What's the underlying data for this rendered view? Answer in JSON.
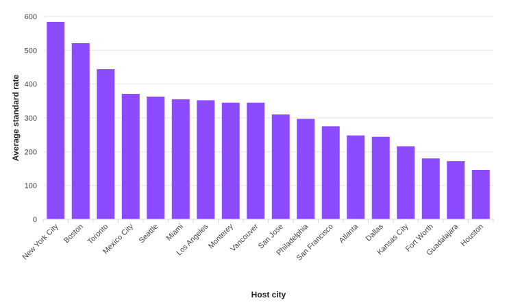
{
  "chart_data": {
    "type": "bar",
    "title": "",
    "xlabel": "Host city",
    "ylabel": "Average standard rate",
    "ylim": [
      0,
      600
    ],
    "yticks": [
      0,
      100,
      200,
      300,
      400,
      500,
      600
    ],
    "grid": true,
    "legend": null,
    "bar_color": "#8c4bff",
    "categories": [
      "New York City",
      "Boston",
      "Toronto",
      "Mexico City",
      "Seattle",
      "Miami",
      "Los Angeles",
      "Monterey",
      "Vancouver",
      "San Jose",
      "Philadelphia",
      "San Francisco",
      "Atlanta",
      "Dallas",
      "Kansas City",
      "Fort Worth",
      "Guadalajara",
      "Houston"
    ],
    "values": [
      584,
      521,
      444,
      371,
      363,
      355,
      352,
      345,
      345,
      310,
      297,
      275,
      248,
      244,
      216,
      180,
      172,
      146
    ]
  }
}
